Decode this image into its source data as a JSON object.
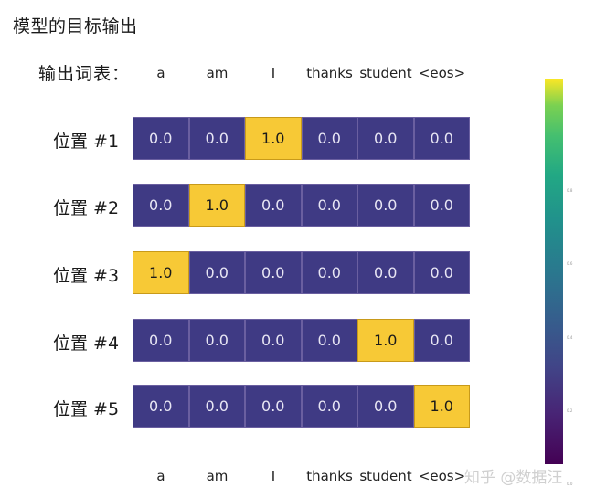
{
  "title": "模型的目标输出",
  "vocab_label": "输出词表：",
  "watermark": "知乎 @数据汪",
  "colors": {
    "low": "#3f3a84",
    "high": "#f7c936"
  },
  "chart_data": {
    "type": "heatmap",
    "columns": [
      "a",
      "am",
      "I",
      "thanks",
      "student",
      "<eos>"
    ],
    "rows": [
      "位置 #1",
      "位置 #2",
      "位置 #3",
      "位置 #4",
      "位置 #5"
    ],
    "values": [
      [
        0.0,
        0.0,
        1.0,
        0.0,
        0.0,
        0.0
      ],
      [
        0.0,
        1.0,
        0.0,
        0.0,
        0.0,
        0.0
      ],
      [
        1.0,
        0.0,
        0.0,
        0.0,
        0.0,
        0.0
      ],
      [
        0.0,
        0.0,
        0.0,
        0.0,
        1.0,
        0.0
      ],
      [
        0.0,
        0.0,
        0.0,
        0.0,
        0.0,
        1.0
      ]
    ],
    "colorbar": {
      "colormap": "viridis",
      "range": [
        0,
        1
      ],
      "ticks": [
        "0.8",
        "0.6",
        "0.4",
        "0.2",
        "0.0"
      ]
    }
  }
}
